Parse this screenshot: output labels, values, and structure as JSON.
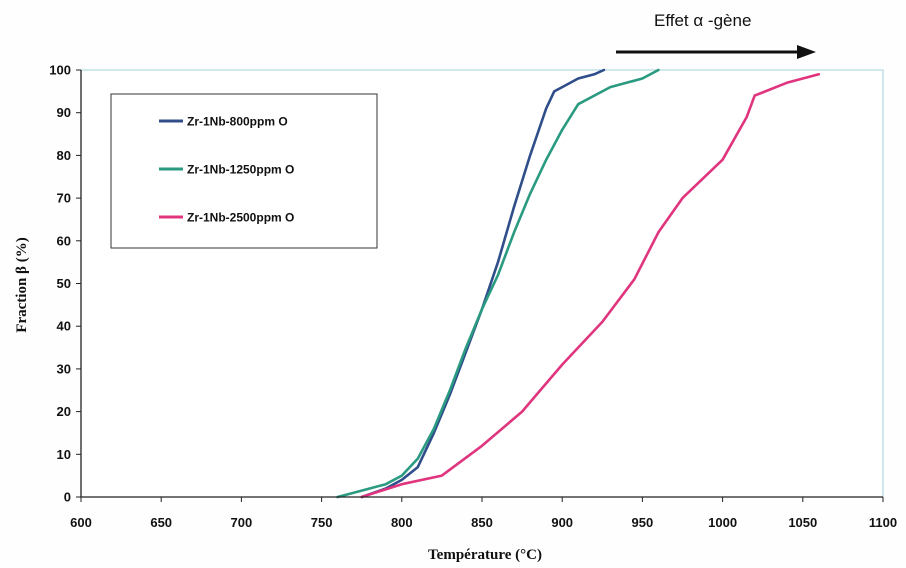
{
  "chart_data": {
    "type": "line",
    "title": "",
    "xlabel": "Température (°C)",
    "ylabel": "Fraction β (%)",
    "xlim": [
      600,
      1100
    ],
    "ylim": [
      0,
      100
    ],
    "x_ticks": [
      "600",
      "650",
      "700",
      "750",
      "800",
      "850",
      "900",
      "950",
      "1000",
      "1050",
      "1100"
    ],
    "y_ticks": [
      "0",
      "10",
      "20",
      "30",
      "40",
      "50",
      "60",
      "70",
      "80",
      "90",
      "100"
    ],
    "grid": false,
    "legend_position": "top-left",
    "annotation": "Effet α -gène",
    "series": [
      {
        "name": "Zr-1Nb-800ppm O",
        "color": "#2f4e8a",
        "x": [
          775,
          790,
          800,
          810,
          820,
          830,
          840,
          850,
          860,
          870,
          880,
          890,
          895,
          900,
          910,
          920,
          926
        ],
        "y": [
          0,
          2,
          4,
          7,
          15,
          24,
          34,
          44,
          55,
          68,
          80,
          91,
          95,
          96,
          98,
          99,
          100
        ]
      },
      {
        "name": "Zr-1Nb-1250ppm O",
        "color": "#2a9a80",
        "x": [
          760,
          770,
          780,
          790,
          800,
          810,
          820,
          830,
          840,
          850,
          860,
          870,
          880,
          890,
          900,
          910,
          920,
          930,
          940,
          950,
          960
        ],
        "y": [
          0,
          1,
          2,
          3,
          5,
          9,
          16,
          25,
          35,
          44,
          52,
          62,
          71,
          79,
          86,
          92,
          94,
          96,
          97,
          98,
          100
        ]
      },
      {
        "name": "Zr-1Nb-2500ppm O",
        "color": "#e0357e",
        "x": [
          775,
          800,
          825,
          850,
          875,
          900,
          925,
          945,
          960,
          975,
          1000,
          1015,
          1020,
          1040,
          1060
        ],
        "y": [
          0,
          3,
          5,
          12,
          20,
          31,
          41,
          51,
          62,
          70,
          79,
          89,
          94,
          97,
          99
        ]
      }
    ]
  }
}
